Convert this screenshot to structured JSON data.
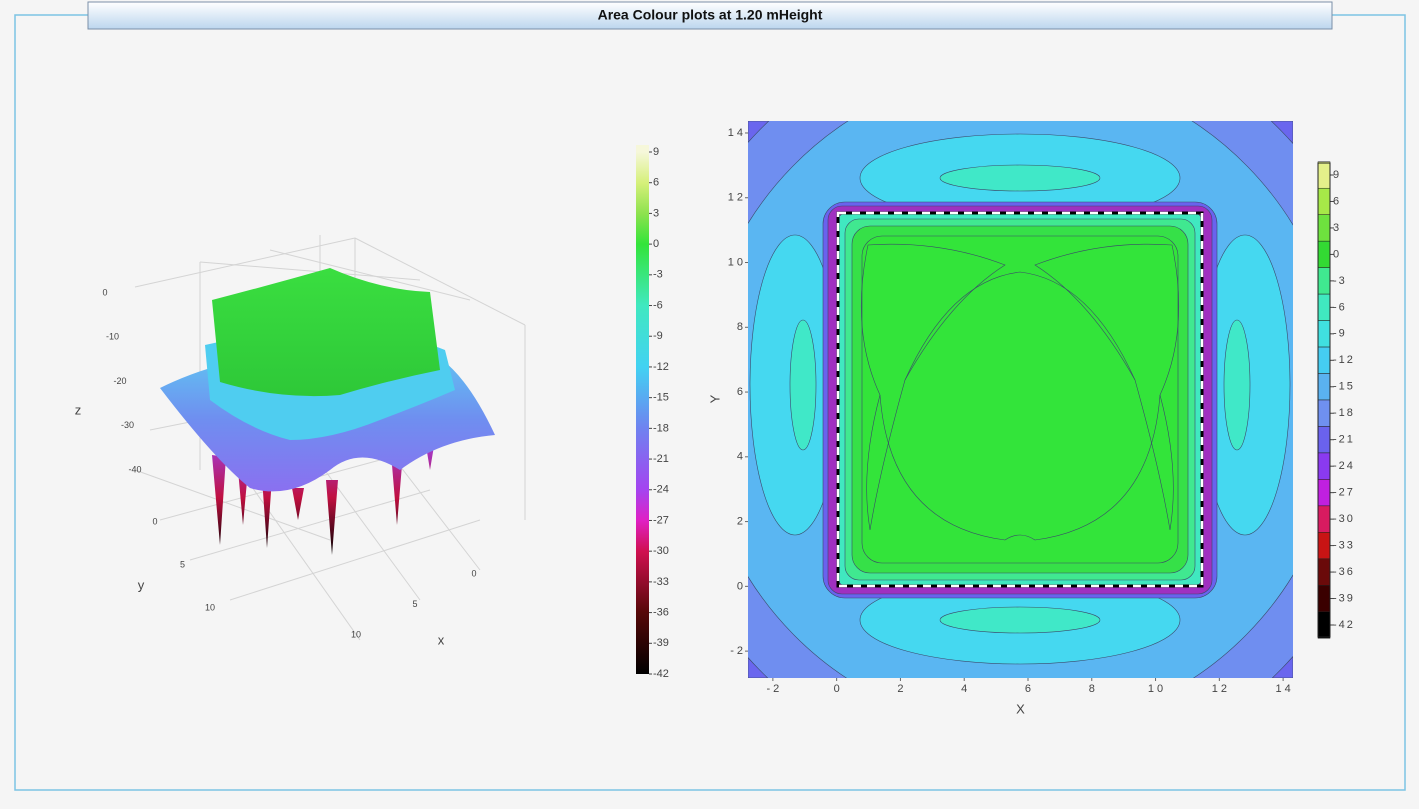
{
  "title": "Area Colour plots at 1.20 mHeight",
  "chart_data": [
    {
      "type": "surface3d",
      "xlabel": "x",
      "ylabel": "y",
      "zlabel": "z",
      "xticks": [
        0,
        5,
        10
      ],
      "yticks": [
        0,
        5,
        10
      ],
      "zticks": [
        0,
        -10,
        -20,
        -30,
        -40
      ],
      "colorbar": {
        "lim": [
          -42,
          9
        ],
        "ticks": [
          9,
          6,
          3,
          0,
          -3,
          -6,
          -9,
          -12,
          -15,
          -18,
          -21,
          -24,
          -27,
          -30,
          -33,
          -36,
          -39,
          -42
        ],
        "colorscale": [
          [
            9,
            "#f6f7da"
          ],
          [
            6,
            "#d6f07a"
          ],
          [
            3,
            "#8ee24e"
          ],
          [
            0,
            "#33e43a"
          ],
          [
            -6,
            "#40e8c0"
          ],
          [
            -12,
            "#42d2f2"
          ],
          [
            -18,
            "#6f82f0"
          ],
          [
            -24,
            "#a444f0"
          ],
          [
            -27,
            "#e020c4"
          ],
          [
            -30,
            "#d01050"
          ],
          [
            -36,
            "#560808"
          ],
          [
            -42,
            "#000000"
          ]
        ]
      }
    },
    {
      "type": "contour",
      "xlabel": "X",
      "ylabel": "Y",
      "xlim": [
        -2.78,
        14.31
      ],
      "ylim": [
        -2.83,
        14.37
      ],
      "xticks": [
        -2,
        0,
        2,
        4,
        6,
        8,
        10,
        12,
        14
      ],
      "yticks": [
        -2,
        0,
        2,
        4,
        6,
        8,
        10,
        12,
        14
      ],
      "colorbar": {
        "lim": [
          -42,
          9
        ],
        "ticks": [
          9,
          6,
          3,
          0,
          -3,
          -6,
          -9,
          -12,
          -15,
          -18,
          -21,
          -24,
          -27,
          -30,
          -33,
          -36,
          -39,
          -42
        ],
        "colors": [
          "#e4f08a",
          "#a6e848",
          "#6ee23e",
          "#33da33",
          "#40e890",
          "#40e8c0",
          "#40e0e0",
          "#45cdf2",
          "#5ab2f0",
          "#6f90f0",
          "#6a62ee",
          "#8a3af0",
          "#c020e0",
          "#d81b60",
          "#c81414",
          "#6a0a0a",
          "#3a0000",
          "#000000"
        ],
        "top_color": "#ffffff"
      }
    }
  ]
}
